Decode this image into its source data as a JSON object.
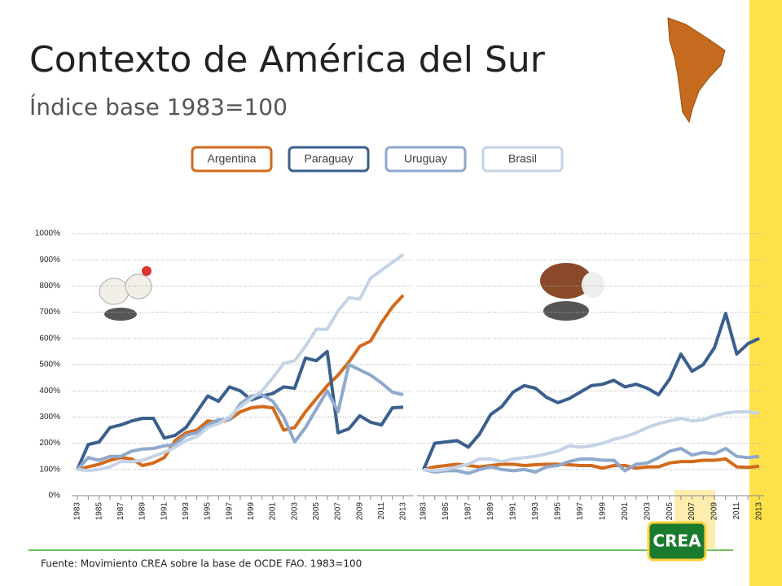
{
  "slide": {
    "title": "Contexto de América del Sur",
    "subtitle": "Índice base 1983=100",
    "source": "Fuente: Movimiento CREA sobre la base de OCDE FAO. 1983=100",
    "logo": "CREA"
  },
  "chart_data": [
    {
      "type": "line",
      "categories": [
        "1983",
        null,
        "1985",
        null,
        "1987",
        null,
        "1989",
        null,
        "1991",
        null,
        "1993",
        null,
        "1995",
        null,
        "1997",
        null,
        "1999",
        null,
        "2001",
        null,
        "2003",
        null,
        "2005",
        null,
        "2007",
        null,
        "2009",
        null,
        "2011",
        null,
        "2013"
      ],
      "ylim": [
        0,
        1000
      ],
      "yticks": [
        {
          "value": 0,
          "label": "0%"
        },
        {
          "value": 100,
          "label": "100%"
        },
        {
          "value": 200,
          "label": "200%"
        },
        {
          "value": 300,
          "label": "300%"
        },
        {
          "value": 400,
          "label": "400%"
        },
        {
          "value": 500,
          "label": "500%"
        },
        {
          "value": 600,
          "label": "600%"
        },
        {
          "value": 700,
          "label": "700%"
        },
        {
          "value": 800,
          "label": "800%"
        },
        {
          "value": 900,
          "label": "900%"
        },
        {
          "value": 1000,
          "label": "1000%"
        }
      ],
      "grid": true,
      "series": [
        {
          "name": "Argentina",
          "color": "#d36a1c",
          "values": [
            100,
            110,
            120,
            135,
            145,
            140,
            115,
            125,
            145,
            210,
            240,
            250,
            285,
            280,
            290,
            320,
            335,
            340,
            335,
            250,
            260,
            320,
            370,
            420,
            460,
            510,
            570,
            590,
            660,
            720,
            765
          ]
        },
        {
          "name": "Paraguay",
          "color": "#3a5f8d",
          "values": [
            100,
            195,
            205,
            260,
            270,
            285,
            295,
            295,
            220,
            230,
            260,
            320,
            380,
            360,
            415,
            400,
            365,
            380,
            390,
            415,
            410,
            525,
            515,
            550,
            240,
            255,
            305,
            280,
            270,
            335,
            338
          ]
        },
        {
          "name": "Uruguay",
          "color": "#8ea9cc",
          "values": [
            100,
            145,
            135,
            150,
            150,
            170,
            178,
            180,
            190,
            195,
            230,
            240,
            270,
            290,
            290,
            350,
            380,
            385,
            360,
            300,
            205,
            260,
            330,
            400,
            320,
            500,
            480,
            460,
            430,
            395,
            385
          ]
        },
        {
          "name": "Brasil",
          "color": "#c5d3e6",
          "values": [
            100,
            95,
            100,
            110,
            130,
            130,
            135,
            150,
            165,
            185,
            210,
            225,
            260,
            275,
            300,
            340,
            370,
            400,
            450,
            505,
            515,
            570,
            635,
            635,
            705,
            755,
            750,
            830,
            860,
            890,
            920
          ]
        }
      ]
    },
    {
      "type": "line",
      "categories": [
        "1983",
        null,
        "1985",
        null,
        "1987",
        null,
        "1989",
        null,
        "1991",
        null,
        "1993",
        null,
        "1995",
        null,
        "1997",
        null,
        "1999",
        null,
        "2001",
        null,
        "2003",
        null,
        "2005",
        null,
        "2007",
        null,
        "2009",
        null,
        "2011",
        null,
        "2013"
      ],
      "ylim": [
        0,
        1000
      ],
      "yticks": [
        0,
        100,
        200,
        300,
        400,
        500,
        600,
        700,
        800,
        900,
        1000
      ],
      "grid": true,
      "series": [
        {
          "name": "Argentina",
          "color": "#d36a1c",
          "values": [
            100,
            110,
            115,
            120,
            115,
            110,
            115,
            120,
            120,
            115,
            118,
            120,
            120,
            118,
            115,
            115,
            105,
            115,
            115,
            105,
            110,
            110,
            125,
            130,
            130,
            135,
            135,
            140,
            110,
            108,
            112
          ]
        },
        {
          "name": "Paraguay",
          "color": "#3a5f8d",
          "values": [
            100,
            200,
            205,
            210,
            185,
            235,
            310,
            340,
            395,
            420,
            410,
            375,
            355,
            370,
            395,
            420,
            425,
            440,
            415,
            425,
            410,
            385,
            445,
            540,
            475,
            500,
            565,
            695,
            540,
            580,
            600
          ]
        },
        {
          "name": "Uruguay",
          "color": "#8ea9cc",
          "values": [
            100,
            90,
            95,
            95,
            85,
            100,
            110,
            100,
            95,
            100,
            90,
            110,
            115,
            130,
            140,
            140,
            135,
            135,
            95,
            120,
            125,
            145,
            170,
            180,
            155,
            165,
            160,
            180,
            150,
            145,
            150
          ]
        },
        {
          "name": "Brasil",
          "color": "#c5d3e6",
          "values": [
            100,
            95,
            100,
            110,
            120,
            140,
            140,
            130,
            140,
            145,
            150,
            160,
            170,
            190,
            185,
            190,
            200,
            215,
            225,
            240,
            260,
            275,
            285,
            295,
            285,
            290,
            305,
            315,
            320,
            320,
            315
          ]
        }
      ]
    }
  ]
}
